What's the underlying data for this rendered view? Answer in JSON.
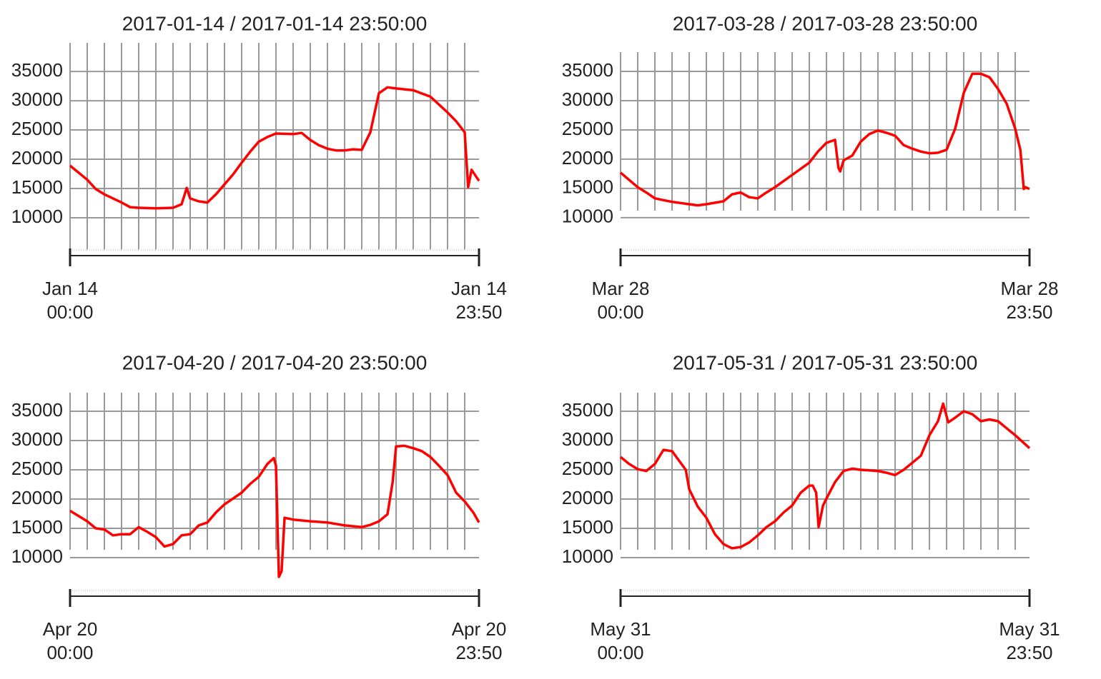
{
  "chart_data": [
    {
      "type": "line",
      "title": "2017-01-14 / 2017-01-14 23:50:00",
      "xlim": [
        0,
        23.833
      ],
      "ylim": [
        4500,
        39900
      ],
      "xticks": [
        {
          "value": 0,
          "label": [
            "Jan 14",
            "00:00"
          ]
        },
        {
          "value": 23.833,
          "label": [
            "Jan 14",
            "23:50"
          ]
        }
      ],
      "yticks": [
        10000,
        15000,
        20000,
        25000,
        30000,
        35000
      ],
      "grid": true,
      "series": [
        {
          "color": "#ff0000",
          "x": [
            0,
            1,
            1.5,
            2,
            3,
            3.5,
            4,
            5,
            6,
            6.5,
            6.8,
            7,
            7.5,
            8,
            8.5,
            9,
            9.5,
            10,
            10.5,
            11,
            11.5,
            12,
            13,
            13.5,
            14,
            14.5,
            15,
            15.5,
            16,
            16.5,
            17,
            17.5,
            18,
            18.5,
            19,
            20,
            21,
            22,
            22.5,
            23,
            23.2,
            23.4,
            23.833
          ],
          "values": [
            18900,
            16500,
            14900,
            14000,
            12600,
            11800,
            11700,
            11600,
            11700,
            12300,
            15100,
            13300,
            12800,
            12600,
            14000,
            15700,
            17400,
            19400,
            21300,
            23000,
            23800,
            24400,
            24300,
            24500,
            23300,
            22400,
            21800,
            21500,
            21500,
            21700,
            21600,
            24600,
            31300,
            32300,
            32100,
            31800,
            30700,
            28000,
            26500,
            24600,
            15200,
            18200,
            16300
          ]
        }
      ]
    },
    {
      "type": "line",
      "title": "2017-03-28 / 2017-03-28 23:50:00",
      "xlim": [
        0,
        23.833
      ],
      "ylim": [
        11200,
        38300
      ],
      "xticks": [
        {
          "value": 0,
          "label": [
            "Mar 28",
            "00:00"
          ]
        },
        {
          "value": 23.833,
          "label": [
            "Mar 28",
            "23:50"
          ]
        }
      ],
      "yticks": [
        10000,
        15000,
        20000,
        25000,
        30000,
        35000
      ],
      "grid": true,
      "series": [
        {
          "color": "#ff0000",
          "x": [
            0,
            1,
            1.5,
            2,
            2.5,
            3,
            4,
            4.5,
            5,
            6,
            6.5,
            7,
            7.5,
            8,
            8.5,
            9,
            10,
            11,
            11.5,
            12,
            12.5,
            12.7,
            12.8,
            13,
            13.5,
            14,
            14.5,
            15,
            15.5,
            16,
            16.5,
            17,
            17.5,
            18,
            18.5,
            19,
            19.5,
            20,
            20.5,
            21,
            21.5,
            22,
            22.5,
            23,
            23.3,
            23.5,
            23.6,
            23.833
          ],
          "values": [
            17700,
            15200,
            14300,
            13300,
            13000,
            12700,
            12300,
            12100,
            12300,
            12800,
            14000,
            14300,
            13500,
            13300,
            14300,
            15200,
            17300,
            19400,
            21300,
            22800,
            23300,
            18500,
            17900,
            19800,
            20600,
            23000,
            24300,
            24900,
            24500,
            24000,
            22400,
            21800,
            21300,
            21000,
            21100,
            21600,
            25200,
            31300,
            34600,
            34600,
            34000,
            32000,
            29500,
            25200,
            21600,
            14900,
            15200,
            14900
          ]
        }
      ]
    },
    {
      "type": "line",
      "title": "2017-04-20 / 2017-04-20 23:50:00",
      "xlim": [
        0,
        23.833
      ],
      "ylim": [
        11340,
        38170
      ],
      "xticks": [
        {
          "value": 0,
          "label": [
            "Apr 20",
            "00:00"
          ]
        },
        {
          "value": 23.833,
          "label": [
            "Apr 20",
            "23:50"
          ]
        }
      ],
      "yticks": [
        10000,
        15000,
        20000,
        25000,
        30000,
        35000
      ],
      "grid": true,
      "series": [
        {
          "color": "#ff0000",
          "x": [
            0,
            1,
            1.5,
            2,
            2.5,
            3,
            3.5,
            4,
            4.5,
            5,
            5.5,
            6,
            6.5,
            7,
            7.5,
            8,
            8.5,
            9,
            10,
            10.5,
            11,
            11.5,
            11.875,
            12,
            12.17,
            12.33,
            12.5,
            13,
            14,
            15,
            16,
            17,
            17.5,
            18,
            18.5,
            18.8,
            19,
            19.5,
            20,
            20.5,
            21,
            21.5,
            22,
            22.5,
            23,
            23.5,
            23.833
          ],
          "values": [
            18000,
            16200,
            15000,
            14800,
            13800,
            14000,
            14000,
            15200,
            14400,
            13500,
            11900,
            12300,
            13800,
            14000,
            15500,
            16000,
            17700,
            19100,
            21100,
            22600,
            23800,
            26000,
            27000,
            25700,
            6700,
            7700,
            16800,
            16500,
            16200,
            16000,
            15500,
            15200,
            15600,
            16200,
            17400,
            22900,
            29000,
            29100,
            28700,
            28200,
            27200,
            25700,
            24100,
            21100,
            19600,
            17700,
            16000
          ]
        }
      ]
    },
    {
      "type": "line",
      "title": "2017-05-31 / 2017-05-31 23:50:00",
      "xlim": [
        0,
        23.833
      ],
      "ylim": [
        11340,
        38170
      ],
      "xticks": [
        {
          "value": 0,
          "label": [
            "May 31",
            "00:00"
          ]
        },
        {
          "value": 23.833,
          "label": [
            "May 31",
            "23:50"
          ]
        }
      ],
      "yticks": [
        10000,
        15000,
        20000,
        25000,
        30000,
        35000
      ],
      "grid": true,
      "series": [
        {
          "color": "#ff0000",
          "x": [
            0,
            0.5,
            1,
            1.5,
            2,
            2.5,
            3,
            3.5,
            3.8,
            4,
            4.5,
            5,
            5.5,
            6,
            6.5,
            7,
            7.5,
            8,
            8.5,
            9,
            9.5,
            10,
            10.5,
            11,
            11.2,
            11.4,
            11.54,
            11.8,
            12,
            12.5,
            13,
            13.5,
            14,
            15,
            15.5,
            16,
            16.5,
            17,
            17.5,
            18,
            18.5,
            18.8,
            19.1,
            19.5,
            20,
            20.5,
            21,
            21.5,
            22,
            22.5,
            23,
            23.833
          ],
          "values": [
            27200,
            26000,
            25100,
            24800,
            26000,
            28400,
            28200,
            26200,
            25000,
            21700,
            18700,
            16800,
            14000,
            12300,
            11600,
            11800,
            12600,
            13800,
            15200,
            16200,
            17700,
            18900,
            21100,
            22300,
            22300,
            21100,
            15200,
            18900,
            20100,
            22900,
            24800,
            25200,
            25000,
            24800,
            24500,
            24100,
            25000,
            26200,
            27400,
            30900,
            33300,
            36300,
            33100,
            33900,
            35000,
            34500,
            33300,
            33600,
            33300,
            32100,
            30900,
            28700
          ]
        }
      ]
    }
  ]
}
